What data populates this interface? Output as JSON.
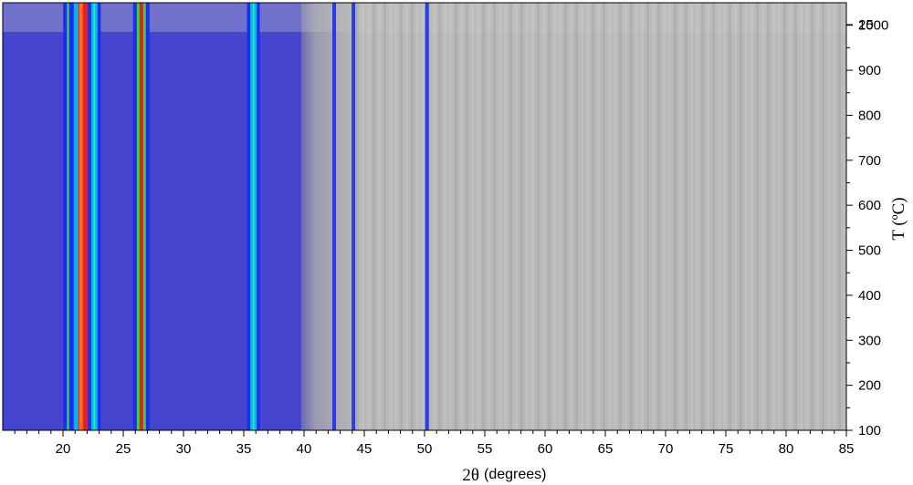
{
  "chart_data": {
    "type": "heatmap",
    "title": "",
    "xlabel": "2θ (degrees)",
    "xlabel_parts": {
      "symbol": "2θ",
      "unit": "(degrees)"
    },
    "ylabel": "T (ºC)",
    "xlim": [
      15,
      85
    ],
    "ylim": [
      100,
      1050
    ],
    "x_ticks": [
      "20",
      "25",
      "30",
      "35",
      "40",
      "45",
      "50",
      "55",
      "60",
      "65",
      "70",
      "75",
      "80",
      "85"
    ],
    "y_ticks": [
      "100",
      "200",
      "300",
      "400",
      "500",
      "600",
      "700",
      "800",
      "900",
      "1000",
      "25"
    ],
    "y_axis_side": "right",
    "colormap": [
      "#3a3acc",
      "#1b2ef0",
      "#00b4ff",
      "#3fe0a0",
      "#3ad13a",
      "#ff7a1a",
      "#e0202a",
      "#b5b5b5"
    ],
    "background_color": "#4545d0",
    "high_angle_color": "#b8b8b8",
    "peaks": [
      {
        "two_theta": 20.7,
        "intensity": "high"
      },
      {
        "two_theta": 21.8,
        "intensity": "very high"
      },
      {
        "two_theta": 22.6,
        "intensity": "medium"
      },
      {
        "two_theta": 26.5,
        "intensity": "high"
      },
      {
        "two_theta": 35.8,
        "intensity": "medium"
      },
      {
        "two_theta": 42.5,
        "intensity": "low"
      },
      {
        "two_theta": 44.1,
        "intensity": "low"
      },
      {
        "two_theta": 50.2,
        "intensity": "low"
      }
    ],
    "grid": false,
    "legend": "none"
  }
}
